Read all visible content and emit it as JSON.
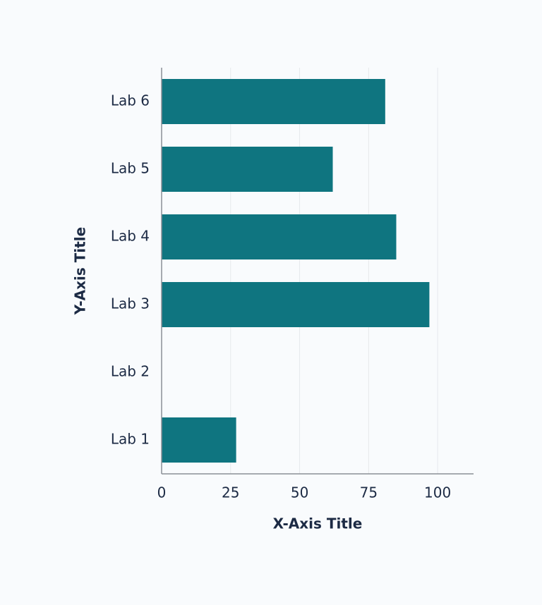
{
  "chart_data": {
    "type": "hbar",
    "categories": [
      "Lab 1",
      "Lab 2",
      "Lab 3",
      "Lab 4",
      "Lab 5",
      "Lab 6"
    ],
    "values": [
      27,
      0,
      97,
      85,
      62,
      81
    ],
    "color": "#0f7580",
    "xlim": [
      0,
      113
    ],
    "xticks": [
      0,
      25,
      50,
      75,
      100
    ],
    "x_label": "X-Axis Title",
    "y_label": "Y-Axis Title",
    "grid": true
  }
}
